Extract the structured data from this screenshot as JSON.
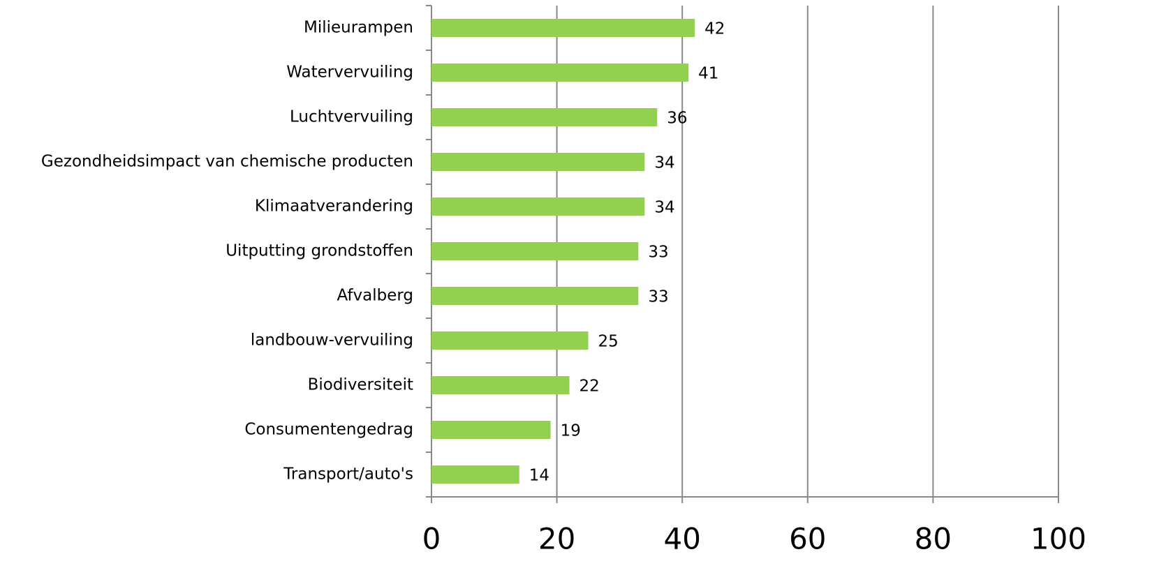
{
  "chart_data": {
    "type": "barh",
    "categories": [
      "Milieurampen",
      "Watervervuiling",
      "Luchtvervuiling",
      "Gezondheidsimpact van chemische producten",
      "Klimaatverandering",
      "Uitputting grondstoffen",
      "Afvalberg",
      "landbouw-vervuiling",
      "Biodiversiteit",
      "Consumentengedrag",
      "Transport/auto's"
    ],
    "values": [
      42,
      41,
      36,
      34,
      34,
      33,
      33,
      25,
      22,
      19,
      14
    ],
    "color": "#92d050",
    "xlim": [
      0,
      100
    ],
    "xticks": [
      0,
      20,
      40,
      60,
      80,
      100
    ],
    "grid": true
  }
}
